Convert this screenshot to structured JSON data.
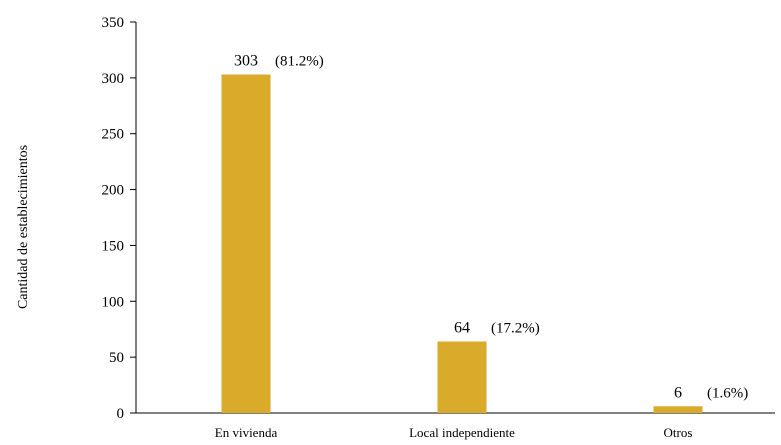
{
  "chart_data": {
    "type": "bar",
    "title": "",
    "xlabel": "",
    "ylabel": "Cantidad de establecimientos",
    "categories": [
      "En vivienda",
      "Local independiente",
      "Otros"
    ],
    "values": [
      303,
      64,
      6
    ],
    "value_labels": [
      "303",
      "64",
      "6"
    ],
    "percent_labels": [
      "(81.2%)",
      "(17.2%)",
      "(1.6%)"
    ],
    "ylim": [
      0,
      350
    ],
    "yticks": [
      0,
      50,
      100,
      150,
      200,
      250,
      300,
      350
    ],
    "grid": false,
    "legend": "none",
    "bar_color": "#DAAA2A"
  }
}
